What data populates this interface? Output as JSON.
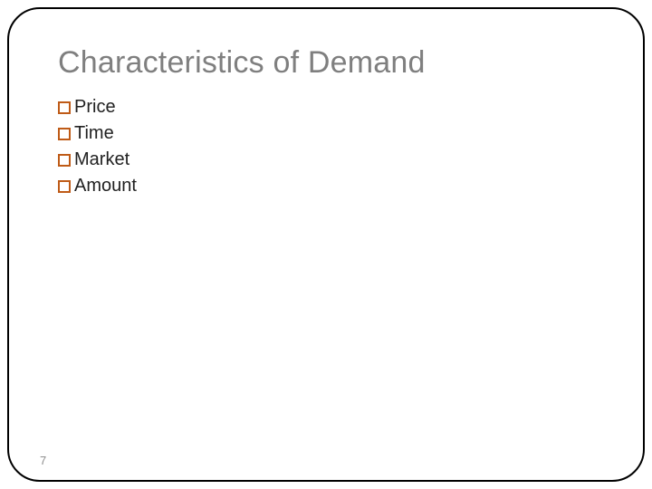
{
  "slide": {
    "title": "Characteristics of Demand",
    "title_color": "#7f7f7f",
    "title_fontsize": 34,
    "bullets": [
      {
        "label": "Price"
      },
      {
        "label": "Time"
      },
      {
        "label": "Market"
      },
      {
        "label": "Amount"
      }
    ],
    "bullet_fontsize": 20,
    "bullet_text_color": "#212121",
    "bullet_box_border_color": "#bf5b17",
    "frame_border_color": "#000000",
    "frame_border_radius": 36,
    "background_color": "#ffffff",
    "slide_number": "7",
    "slide_number_color": "#8e8e8e",
    "slide_number_fontsize": 13
  }
}
